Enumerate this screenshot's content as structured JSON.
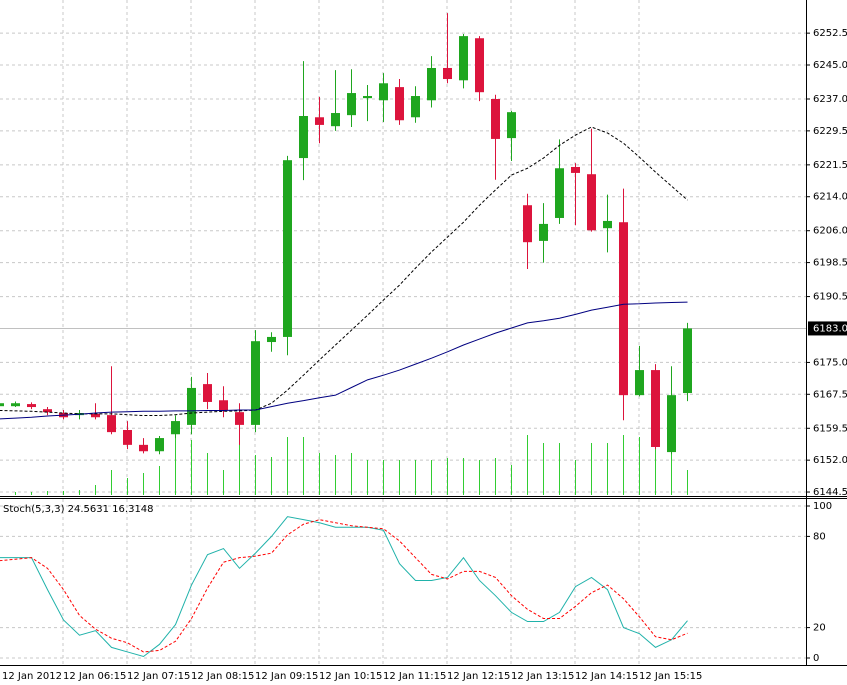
{
  "chart_data": [
    {
      "type": "candlestick",
      "categories": [
        "12 Jan 2012",
        null,
        null,
        null,
        "12 Jan 06:15",
        null,
        null,
        null,
        "12 Jan 07:15",
        null,
        null,
        null,
        "12 Jan 08:15",
        null,
        null,
        null,
        "12 Jan 09:15",
        null,
        null,
        null,
        "12 Jan 10:15",
        null,
        null,
        null,
        "12 Jan 11:15",
        null,
        null,
        null,
        "12 Jan 12:15",
        null,
        null,
        null,
        "12 Jan 13:15",
        null,
        null,
        null,
        "12 Jan 14:15",
        null,
        null,
        null,
        "12 Jan 15:15",
        null,
        null,
        null
      ],
      "open": [
        6164.7,
        6164.7,
        6165.2,
        6164.0,
        6163.1,
        6162.6,
        6162.9,
        6162.6,
        6159.1,
        6155.6,
        6154.1,
        6158.1,
        6160.3,
        6169.9,
        6166.1,
        6163.3,
        6160.3,
        6179.8,
        6181.0,
        6223.1,
        6232.7,
        6230.6,
        6233.2,
        6237.2,
        6236.7,
        6239.8,
        6232.7,
        6236.7,
        6244.3,
        6241.4,
        6251.3,
        6237.0,
        6227.8,
        6212.0,
        6203.6,
        6209.0,
        6221.0,
        6219.3,
        6206.6,
        6208.0,
        6167.3,
        6173.2,
        6153.9,
        6167.8
      ],
      "high": [
        6165.8,
        6165.8,
        6165.6,
        6164.5,
        6163.8,
        6163.8,
        6165.4,
        6174.1,
        6161.2,
        6157.2,
        6157.7,
        6162.5,
        6171.6,
        6172.5,
        6169.4,
        6165.4,
        6182.6,
        6182.1,
        6223.6,
        6245.9,
        6237.5,
        6243.8,
        6244.0,
        6240.3,
        6243.1,
        6241.7,
        6240.0,
        6247.1,
        6257.2,
        6252.3,
        6251.8,
        6238.0,
        6234.2,
        6214.7,
        6212.5,
        6227.5,
        6221.9,
        6230.0,
        6214.5,
        6215.9,
        6178.9,
        6174.6,
        6174.1,
        6184.3
      ],
      "low": [
        6164.5,
        6164.5,
        6164.0,
        6162.6,
        6161.6,
        6161.6,
        6161.6,
        6158.1,
        6154.6,
        6153.6,
        6153.4,
        6157.2,
        6158.1,
        6164.0,
        6162.1,
        6155.6,
        6158.6,
        6177.5,
        6176.7,
        6217.9,
        6226.6,
        6229.5,
        6230.4,
        6231.8,
        6231.6,
        6230.9,
        6231.4,
        6235.0,
        6240.7,
        6239.5,
        6236.5,
        6218.0,
        6222.4,
        6197.0,
        6198.5,
        6207.6,
        6207.3,
        6205.8,
        6200.9,
        6161.4,
        6167.0,
        6154.6,
        6153.4,
        6165.9
      ],
      "close": [
        6165.4,
        6165.4,
        6164.5,
        6163.3,
        6162.1,
        6163.1,
        6162.1,
        6158.6,
        6155.6,
        6154.1,
        6157.2,
        6161.2,
        6169.0,
        6165.7,
        6163.8,
        6160.3,
        6180.0,
        6181.0,
        6222.6,
        6233.0,
        6230.9,
        6233.7,
        6238.4,
        6237.7,
        6240.7,
        6232.0,
        6237.7,
        6244.3,
        6241.7,
        6251.8,
        6238.6,
        6227.6,
        6233.9,
        6203.3,
        6207.6,
        6220.7,
        6219.6,
        6206.1,
        6208.3,
        6167.3,
        6173.2,
        6155.1,
        6167.3,
        6183.0
      ],
      "volume": [
        3,
        3,
        3,
        4,
        4,
        5,
        10,
        25,
        17,
        22,
        29,
        60,
        55,
        42,
        25,
        55,
        40,
        38,
        58,
        58,
        42,
        40,
        42,
        35,
        35,
        35,
        35,
        35,
        37,
        37,
        35,
        37,
        30,
        60,
        52,
        52,
        35,
        52,
        52,
        60,
        58,
        55,
        55,
        25
      ],
      "up_color": "#1fa61f",
      "down_color": "#dc143c",
      "volume_color": "#32cd32",
      "lines": [
        {
          "color": "#000000",
          "style": "dashed",
          "values": [
            6163.7,
            6163.6,
            6163.5,
            6163.3,
            6163.1,
            6162.9,
            6162.9,
            6162.9,
            6162.7,
            6162.5,
            6162.5,
            6162.7,
            6163.1,
            6163.3,
            6163.5,
            6163.6,
            6163.8,
            6165.4,
            6168.5,
            6172.0,
            6175.6,
            6179.1,
            6182.6,
            6186.1,
            6189.7,
            6193.2,
            6197.2,
            6201.0,
            6204.5,
            6208.0,
            6212.0,
            6215.6,
            6219.1,
            6220.7,
            6223.1,
            6226.1,
            6228.5,
            6230.4,
            6229.0,
            6226.6,
            6223.3,
            6219.8,
            6216.5,
            6213.2
          ]
        },
        {
          "color": "#000080",
          "style": "solid",
          "values": [
            6161.7,
            6161.9,
            6162.1,
            6162.4,
            6162.6,
            6162.8,
            6163.1,
            6163.3,
            6163.4,
            6163.5,
            6163.5,
            6163.6,
            6163.6,
            6163.7,
            6163.7,
            6163.8,
            6163.8,
            6164.6,
            6165.4,
            6166.0,
            6166.7,
            6167.3,
            6169.1,
            6170.9,
            6172.0,
            6173.2,
            6174.6,
            6176.0,
            6177.5,
            6179.1,
            6180.5,
            6181.9,
            6183.1,
            6184.3,
            6184.8,
            6185.4,
            6186.3,
            6187.3,
            6188.0,
            6188.7,
            6188.8,
            6189.0,
            6189.1,
            6189.2
          ]
        }
      ],
      "current_price": {
        "value": 6183.0,
        "label": "6183.0"
      },
      "ylim": [
        6143.8,
        6260.3
      ],
      "yticks": [
        6252.5,
        {
          "value": 6245,
          "label": "6245.0"
        },
        {
          "value": 6237,
          "label": "6237.0"
        },
        6229.5,
        6221.5,
        {
          "value": 6214,
          "label": "6214.0"
        },
        {
          "value": 6206,
          "label": "6206.0"
        },
        6198.5,
        6190.5,
        {
          "value": 6175,
          "label": "6175.0"
        },
        6167.5,
        6159.5,
        {
          "value": 6152,
          "label": "6152.0"
        },
        6144.5
      ],
      "grid": true
    },
    {
      "type": "line",
      "title": "Stoch(5,3,3) 24.5631 16.3148",
      "series": [
        {
          "color": "#20b2aa",
          "style": "solid",
          "values": [
            66,
            66,
            66,
            45,
            25,
            15,
            18,
            7,
            4,
            1,
            9,
            22,
            48,
            68,
            72,
            59,
            69,
            80,
            93,
            91,
            89,
            86,
            86,
            86,
            84,
            62,
            51,
            51,
            53,
            66,
            51,
            41,
            30,
            24,
            24,
            30,
            47,
            53,
            45,
            20,
            16,
            7,
            12,
            24.5631
          ]
        },
        {
          "color": "#ff0000",
          "style": "dashed",
          "values": [
            64,
            65,
            66,
            59,
            45,
            28,
            19,
            13,
            10,
            4,
            5,
            11,
            26,
            46,
            63,
            66,
            67,
            69,
            81,
            88,
            91,
            89,
            87,
            86,
            85,
            77,
            66,
            55,
            52,
            57,
            57,
            53,
            41,
            32,
            26,
            26,
            34,
            43,
            48,
            39,
            27,
            14,
            12,
            16.3148
          ]
        }
      ],
      "ylim": [
        -4.6,
        104.6
      ],
      "yticks": [
        100,
        80,
        20,
        0
      ],
      "grid": true
    }
  ]
}
